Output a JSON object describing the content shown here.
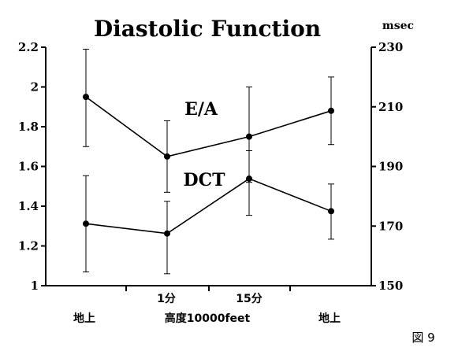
{
  "chart_data": {
    "type": "line",
    "title": "Diastolic Function",
    "left_axis": {
      "ylim": [
        1,
        2.2
      ],
      "ticks": [
        "1",
        "1.2",
        "1.4",
        "1.6",
        "1.8",
        "2",
        "2.2"
      ],
      "tick_values": [
        1,
        1.2,
        1.4,
        1.6,
        1.8,
        2,
        2.2
      ]
    },
    "right_axis": {
      "unit": "msec",
      "ylim": [
        150,
        230
      ],
      "ticks": [
        "150",
        "170",
        "190",
        "210",
        "230"
      ],
      "tick_values": [
        150,
        170,
        190,
        210,
        230
      ]
    },
    "x_labels_top": [
      "",
      "1分",
      "15分",
      ""
    ],
    "x_labels_bottom": [
      "地上",
      "高度10000feet",
      "地上"
    ],
    "series": [
      {
        "name": "E/A",
        "axis": "left",
        "values": [
          1.95,
          1.65,
          1.75,
          1.88
        ],
        "err_high": [
          2.19,
          1.83,
          2.0,
          2.05
        ],
        "err_low": [
          1.7,
          1.47,
          1.52,
          1.71
        ]
      },
      {
        "name": "DCT",
        "axis": "right",
        "values": [
          170.8,
          167.5,
          185.9,
          175.0
        ],
        "err_high": [
          186.9,
          178.3,
          195.3,
          184.1
        ],
        "err_low": [
          154.6,
          154.0,
          173.6,
          165.6
        ]
      }
    ],
    "grid": false,
    "figure_label": "図 9"
  }
}
